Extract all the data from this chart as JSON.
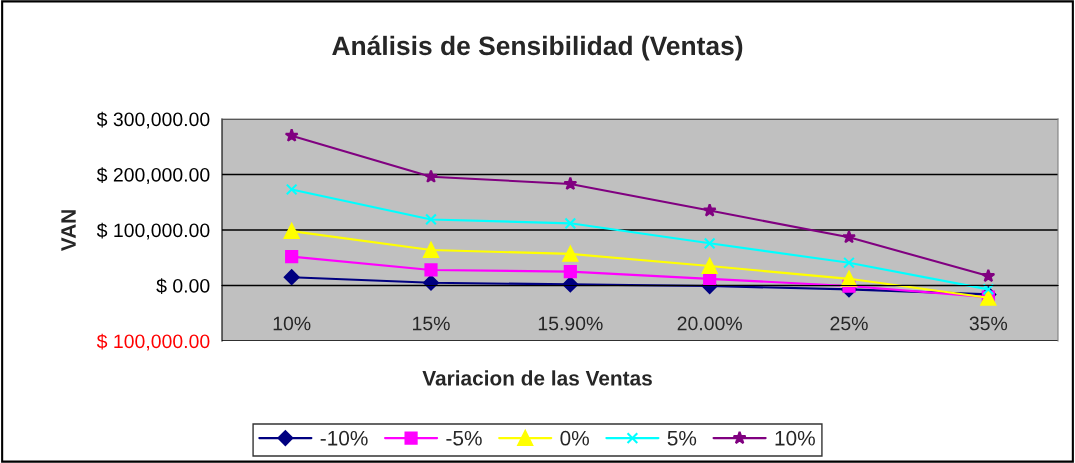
{
  "chart_data": {
    "type": "line",
    "title": "Análisis de Sensibilidad (Ventas)",
    "xlabel": "Variacion de las Ventas",
    "ylabel": "VAN",
    "categories": [
      "10%",
      "15%",
      "15.90%",
      "20.00%",
      "25%",
      "35%"
    ],
    "series": [
      {
        "name": "-10%",
        "color": "#000080",
        "marker": "diamond",
        "values": [
          15000,
          5000,
          2000,
          -1000,
          -7000,
          -16000
        ]
      },
      {
        "name": "-5%",
        "color": "#ff00ff",
        "marker": "square",
        "values": [
          52000,
          28000,
          25000,
          12000,
          -1000,
          -21000
        ]
      },
      {
        "name": "0%",
        "color": "#ffff00",
        "marker": "triangle",
        "values": [
          98000,
          64000,
          57000,
          35000,
          12000,
          -22000
        ]
      },
      {
        "name": "5%",
        "color": "#00ffff",
        "marker": "cross",
        "values": [
          173000,
          119000,
          112000,
          76000,
          41000,
          -7000
        ]
      },
      {
        "name": "10%",
        "color": "#800080",
        "marker": "star",
        "values": [
          270000,
          196000,
          183000,
          135000,
          87000,
          17000
        ]
      }
    ],
    "ylim": [
      -100000,
      300000
    ],
    "yticks": [
      {
        "value": -100000,
        "label": "$ 100,000.00"
      },
      {
        "value": 0,
        "label": "$ 0.00"
      },
      {
        "value": 100000,
        "label": "$ 100,000.00"
      },
      {
        "value": 200000,
        "label": "$ 200,000.00"
      },
      {
        "value": 300000,
        "label": "$ 300,000.00"
      }
    ],
    "grid": "y",
    "legend": "bottom"
  }
}
